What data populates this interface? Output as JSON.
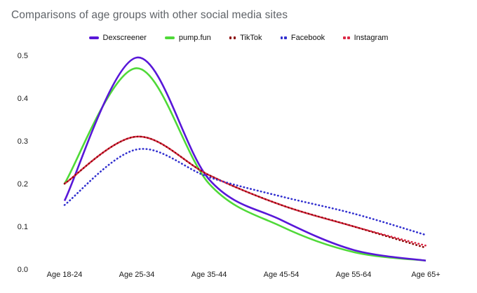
{
  "title": "Comparisons of age groups with other social media sites",
  "colors": {
    "title_gray": "#5f6368",
    "axis_text": "#1a1a1a",
    "dexscreener": "#5817d8",
    "pumpfun": "#4fd938",
    "tiktok": "#8b0000",
    "facebook": "#3230cf",
    "instagram": "#dc2845"
  },
  "chart_data": {
    "type": "line",
    "title": "Comparisons of age groups with other social media sites",
    "categories": [
      "Age 18-24",
      "Age 25-34",
      "Age 35-44",
      "Age 45-54",
      "Age 55-64",
      "Age 65+"
    ],
    "series": [
      {
        "name": "Dexscreener",
        "color": "#5817d8",
        "style": "solid",
        "values": [
          0.16,
          0.495,
          0.21,
          0.115,
          0.045,
          0.02
        ]
      },
      {
        "name": "pump.fun",
        "color": "#4fd938",
        "style": "solid",
        "values": [
          0.2,
          0.47,
          0.2,
          0.1,
          0.04,
          0.02
        ]
      },
      {
        "name": "TikTok",
        "color": "#8b0000",
        "style": "dotted",
        "values": [
          0.2,
          0.31,
          0.22,
          0.15,
          0.1,
          0.05
        ]
      },
      {
        "name": "Facebook",
        "color": "#3230cf",
        "style": "dotted",
        "values": [
          0.15,
          0.28,
          0.215,
          0.17,
          0.13,
          0.08
        ]
      },
      {
        "name": "Instagram",
        "color": "#dc2845",
        "style": "dotted",
        "values": [
          0.2,
          0.31,
          0.22,
          0.15,
          0.1,
          0.055
        ]
      }
    ],
    "xlabel": "",
    "ylabel": "",
    "ylim": [
      0.0,
      0.5
    ],
    "yticks": [
      "0.0",
      "0.1",
      "0.2",
      "0.3",
      "0.4",
      "0.5"
    ],
    "grid": false,
    "axis_lines": false,
    "legend_position": "top-center"
  }
}
